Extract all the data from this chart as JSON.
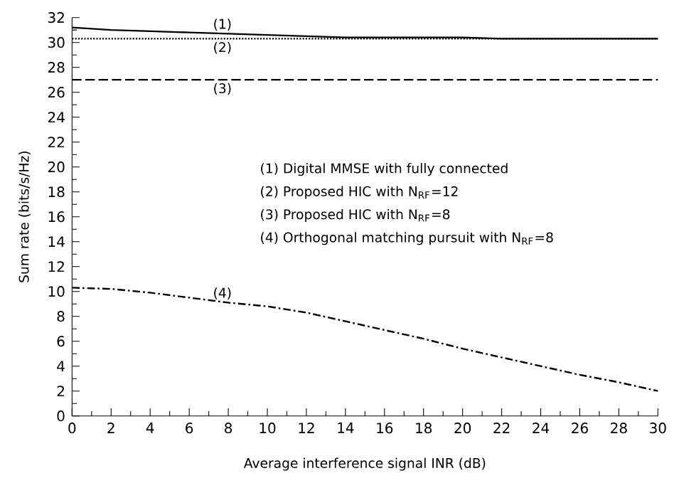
{
  "chart_data": {
    "type": "line",
    "xlabel": "Average interference signal INR (dB)",
    "ylabel": "Sum rate (bits/s/Hz)",
    "x": [
      0,
      2,
      4,
      6,
      8,
      10,
      12,
      14,
      16,
      18,
      20,
      22,
      24,
      26,
      28,
      30
    ],
    "series": [
      {
        "name": "(1)",
        "color": "#000000",
        "line_style": "solid",
        "values": [
          31.2,
          31.0,
          30.9,
          30.8,
          30.7,
          30.6,
          30.5,
          30.4,
          30.4,
          30.4,
          30.4,
          30.3,
          30.3,
          30.3,
          30.3,
          30.3
        ]
      },
      {
        "name": "(2)",
        "color": "#000000",
        "line_style": "dotted",
        "values": [
          30.3,
          30.3,
          30.3,
          30.3,
          30.3,
          30.3,
          30.3,
          30.3,
          30.3,
          30.3,
          30.3,
          30.3,
          30.3,
          30.3,
          30.3,
          30.3
        ]
      },
      {
        "name": "(3)",
        "color": "#000000",
        "line_style": "dashed",
        "values": [
          27.0,
          27.0,
          27.0,
          27.0,
          27.0,
          27.0,
          27.0,
          27.0,
          27.0,
          27.0,
          27.0,
          27.0,
          27.0,
          27.0,
          27.0,
          27.0
        ]
      },
      {
        "name": "(4)",
        "color": "#000000",
        "line_style": "dashdot",
        "values": [
          10.3,
          10.2,
          9.9,
          9.5,
          9.1,
          8.8,
          8.3,
          7.6,
          6.9,
          6.2,
          5.4,
          4.7,
          4.0,
          3.3,
          2.7,
          2.0
        ]
      }
    ],
    "annotations": [
      "(1) Digital MMSE with fully connected",
      "(2) Proposed HIC with N$_{RF}$=12",
      "(3) Proposed HIC with N$_{RF}$=8",
      "(4) Orthogonal matching pursuit with N$_{RF}$=8"
    ],
    "xlim": [
      0,
      30
    ],
    "ylim": [
      0,
      32
    ],
    "xticks": [
      0,
      2,
      4,
      6,
      8,
      10,
      12,
      14,
      16,
      18,
      20,
      22,
      24,
      26,
      28,
      30
    ],
    "yticks": [
      0,
      2,
      4,
      6,
      8,
      10,
      12,
      14,
      16,
      18,
      20,
      22,
      24,
      26,
      28,
      30,
      32
    ],
    "grid": false,
    "legend": false,
    "marker": "none"
  }
}
